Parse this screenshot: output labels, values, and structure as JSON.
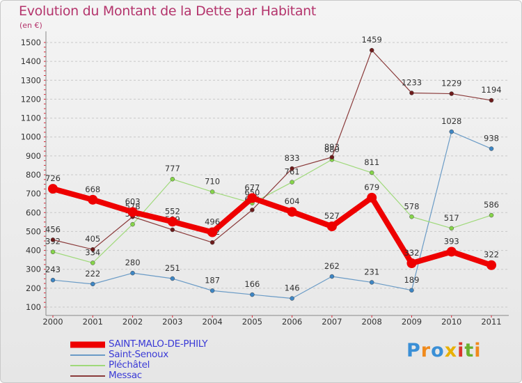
{
  "header": {
    "title": "Evolution du Montant de la Dette par Habitant",
    "subtitle": "(en €)"
  },
  "logo": {
    "text": "Proxiti",
    "colors": [
      "#3a8fd6",
      "#f08a1c",
      "#6ab02f",
      "#e8b000",
      "#d9362c"
    ]
  },
  "chart_data": {
    "type": "line",
    "title": "Evolution du Montant de la Dette par Habitant",
    "subtitle": "(en €)",
    "xlabel": "",
    "ylabel": "",
    "categories": [
      "2000",
      "2001",
      "2002",
      "2003",
      "2004",
      "2005",
      "2006",
      "2007",
      "2008",
      "2009",
      "2010",
      "2011"
    ],
    "y_ticks": [
      100,
      200,
      300,
      400,
      500,
      600,
      700,
      800,
      900,
      1000,
      1100,
      1200,
      1300,
      1400,
      1500
    ],
    "ylim": [
      100,
      1500
    ],
    "grid": "dashed horizontal",
    "legend_position": "bottom-left",
    "series": [
      {
        "name": "SAINT-MALO-DE-PHILY",
        "color": "#ee0000",
        "point_color": "#ee0000",
        "emphasis": true,
        "values": [
          726,
          668,
          603,
          552,
          496,
          677,
          604,
          527,
          679,
          332,
          393,
          322
        ]
      },
      {
        "name": "Saint-Senoux",
        "color": "#6a9bc6",
        "point_color": "#3e86c4",
        "emphasis": false,
        "values": [
          243,
          222,
          280,
          251,
          187,
          166,
          146,
          262,
          231,
          189,
          1028,
          938
        ]
      },
      {
        "name": "Pléchâtel",
        "color": "#9fd97a",
        "point_color": "#86d54a",
        "emphasis": false,
        "values": [
          392,
          334,
          538,
          777,
          710,
          650,
          761,
          880,
          811,
          578,
          517,
          586
        ]
      },
      {
        "name": "Messac",
        "color": "#8a3a3a",
        "point_color": "#6e1c1c",
        "emphasis": false,
        "values": [
          456,
          405,
          578,
          509,
          442,
          614,
          833,
          893,
          1459,
          1233,
          1229,
          1194
        ]
      }
    ]
  }
}
